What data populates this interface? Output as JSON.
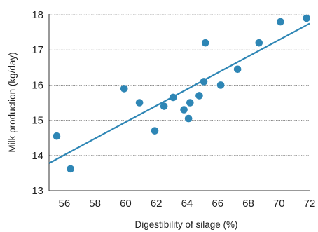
{
  "chart_data": {
    "type": "scatter",
    "title": "",
    "xlabel": "Digestibility of silage (%)",
    "ylabel": "Milk production (kg/day)",
    "xlim": [
      55,
      72
    ],
    "ylim": [
      13,
      18
    ],
    "xticks": [
      "56",
      "58",
      "60",
      "62",
      "64",
      "66",
      "68",
      "70",
      "72"
    ],
    "yticks": [
      "13",
      "14",
      "15",
      "16",
      "17",
      "18"
    ],
    "grid": "horizontal-dotted",
    "colors": {
      "points": "#2e86b5",
      "trend": "#2e86b5"
    },
    "points": [
      {
        "x": 55.5,
        "y": 14.55
      },
      {
        "x": 56.4,
        "y": 13.62
      },
      {
        "x": 59.9,
        "y": 15.9
      },
      {
        "x": 60.9,
        "y": 15.5
      },
      {
        "x": 61.9,
        "y": 14.7
      },
      {
        "x": 62.5,
        "y": 15.4
      },
      {
        "x": 63.1,
        "y": 15.65
      },
      {
        "x": 63.8,
        "y": 15.3
      },
      {
        "x": 64.1,
        "y": 15.05
      },
      {
        "x": 64.2,
        "y": 15.5
      },
      {
        "x": 64.8,
        "y": 15.7
      },
      {
        "x": 65.1,
        "y": 16.1
      },
      {
        "x": 65.2,
        "y": 17.2
      },
      {
        "x": 66.2,
        "y": 16.0
      },
      {
        "x": 67.3,
        "y": 16.45
      },
      {
        "x": 68.7,
        "y": 17.2
      },
      {
        "x": 70.1,
        "y": 17.8
      },
      {
        "x": 71.8,
        "y": 17.9
      }
    ],
    "trendline": {
      "x": [
        55,
        72
      ],
      "y": [
        13.78,
        17.75
      ]
    }
  }
}
